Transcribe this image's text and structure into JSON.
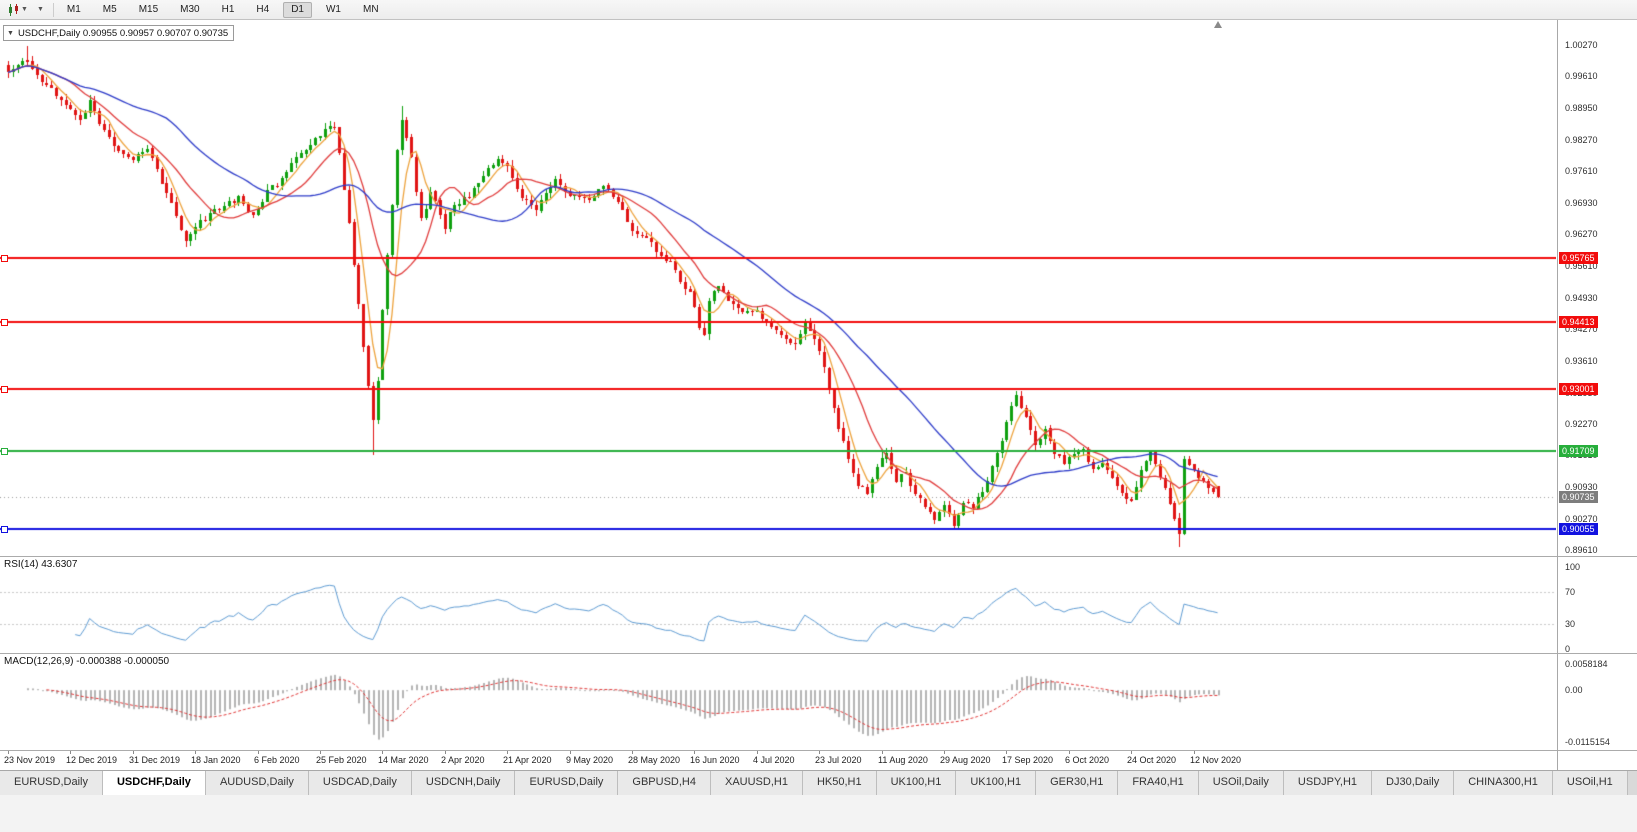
{
  "toolbar": {
    "timeframes": [
      "M1",
      "M5",
      "M15",
      "M30",
      "H1",
      "H4",
      "D1",
      "W1",
      "MN"
    ],
    "active": "D1",
    "chart_type_icon": "candlestick-chart",
    "dropdown_icon": "caret-down"
  },
  "chart": {
    "symbol_line": "USDCHF,Daily 0.90955 0.90957 0.90707 0.90735",
    "ohlc": {
      "open": "0.90955",
      "high": "0.90957",
      "low": "0.90707",
      "close": "0.90735"
    },
    "price_axis_labels": [
      "1.00270",
      "0.99610",
      "0.98950",
      "0.98270",
      "0.97610",
      "0.96930",
      "0.96270",
      "0.95610",
      "0.94930",
      "0.94270",
      "0.93610",
      "0.92930",
      "0.92270",
      "0.91610",
      "0.90930",
      "0.90270",
      "0.89610"
    ],
    "hlines": [
      {
        "value": 0.95765,
        "label": "0.95765",
        "color": "#f20c0c"
      },
      {
        "value": 0.94413,
        "label": "0.94413",
        "color": "#f20c0c"
      },
      {
        "value": 0.93001,
        "label": "0.93001",
        "color": "#f20c0c"
      },
      {
        "value": 0.91709,
        "label": "0.91709",
        "color": "#27ae3b"
      },
      {
        "value": 0.90055,
        "label": "0.90055",
        "color": "#1212e0"
      }
    ],
    "current_price": {
      "label": "0.90735",
      "value": 0.90735,
      "color": "#7d7d7d"
    }
  },
  "rsi": {
    "title": "RSI(14) 43.6307",
    "period": 14,
    "value": 43.6307,
    "levels": [
      100,
      70,
      30,
      0
    ],
    "color": "#5e9bd2"
  },
  "macd": {
    "title": "MACD(12,26,9) -0.000388 -0.000050",
    "fast": 12,
    "slow": 26,
    "signal": 9,
    "value": -0.000388,
    "signal_value": -5e-05,
    "axis_labels": [
      "0.0058184",
      "0.00",
      "-0.0115154"
    ],
    "histogram_color": "#b4b4b4",
    "signal_color": "#e03636"
  },
  "tabs": {
    "active_index": 1,
    "labels": [
      "EURUSD,Daily",
      "USDCHF,Daily",
      "AUDUSD,Daily",
      "USDCAD,Daily",
      "USDCNH,Daily",
      "EURUSD,Daily",
      "GBPUSD,H4",
      "XAUUSD,H1",
      "HK50,H1",
      "UK100,H1",
      "UK100,H1",
      "GER30,H1",
      "FRA40,H1",
      "USOil,Daily",
      "USDJPY,H1",
      "DJ30,Daily",
      "CHINA300,H1",
      "USOil,H1"
    ]
  },
  "chart_data": {
    "type": "candlestick",
    "symbol": "USDCHF",
    "timeframe": "Daily",
    "candle_count": 253,
    "seed": 20201119,
    "noise": 0.0012,
    "wick_noise": 0.0013,
    "up_color": "#0fa00f",
    "down_color": "#e01414",
    "label_step": 13,
    "x_labels": [
      "23 Nov 2019",
      "12 Dec 2019",
      "31 Dec 2019",
      "18 Jan 2020",
      "6 Feb 2020",
      "25 Feb 2020",
      "14 Mar 2020",
      "2 Apr 2020",
      "21 Apr 2020",
      "9 May 2020",
      "28 May 2020",
      "16 Jun 2020",
      "4 Jul 2020",
      "23 Jul 2020",
      "11 Aug 2020",
      "29 Aug 2020",
      "17 Sep 2020",
      "6 Oct 2020",
      "24 Oct 2020",
      "12 Nov 2020"
    ],
    "y_axis": {
      "top_price": 1.0027,
      "bottom_price": 0.8961
    },
    "last_candle": {
      "open": 0.90955,
      "high": 0.90957,
      "low": 0.90707,
      "close": 0.90735
    },
    "moving_averages": [
      {
        "period": 5,
        "color": "#eda33e"
      },
      {
        "period": 13,
        "color": "#e03c3c"
      },
      {
        "period": 34,
        "color": "#2e3cc9"
      }
    ],
    "price_anchors": [
      [
        0,
        0.9972
      ],
      [
        2,
        0.9988
      ],
      [
        4,
        0.9996
      ],
      [
        6,
        0.9966
      ],
      [
        8,
        0.9942
      ],
      [
        11,
        0.9912
      ],
      [
        13,
        0.9886
      ],
      [
        15,
        0.9872
      ],
      [
        17,
        0.9904
      ],
      [
        20,
        0.9844
      ],
      [
        23,
        0.9806
      ],
      [
        26,
        0.9788
      ],
      [
        29,
        0.9812
      ],
      [
        31,
        0.9762
      ],
      [
        33,
        0.9716
      ],
      [
        35,
        0.9662
      ],
      [
        37,
        0.9616
      ],
      [
        40,
        0.9652
      ],
      [
        44,
        0.9682
      ],
      [
        48,
        0.9704
      ],
      [
        51,
        0.9668
      ],
      [
        54,
        0.9718
      ],
      [
        57,
        0.9742
      ],
      [
        60,
        0.9786
      ],
      [
        63,
        0.9822
      ],
      [
        66,
        0.9846
      ],
      [
        68,
        0.9854
      ],
      [
        69,
        0.98
      ],
      [
        70,
        0.972
      ],
      [
        71,
        0.9656
      ],
      [
        72,
        0.9562
      ],
      [
        73,
        0.9476
      ],
      [
        74,
        0.9388
      ],
      [
        75,
        0.9306
      ],
      [
        76,
        0.924
      ],
      [
        77,
        0.932
      ],
      [
        78,
        0.9464
      ],
      [
        79,
        0.958
      ],
      [
        80,
        0.9694
      ],
      [
        81,
        0.98
      ],
      [
        82,
        0.9872
      ],
      [
        83,
        0.9828
      ],
      [
        84,
        0.9786
      ],
      [
        85,
        0.9718
      ],
      [
        86,
        0.9662
      ],
      [
        88,
        0.9712
      ],
      [
        90,
        0.9672
      ],
      [
        91,
        0.9644
      ],
      [
        93,
        0.9692
      ],
      [
        96,
        0.9706
      ],
      [
        99,
        0.9748
      ],
      [
        102,
        0.9786
      ],
      [
        104,
        0.9768
      ],
      [
        106,
        0.9722
      ],
      [
        108,
        0.9696
      ],
      [
        110,
        0.9684
      ],
      [
        112,
        0.9714
      ],
      [
        114,
        0.974
      ],
      [
        116,
        0.9722
      ],
      [
        118,
        0.9706
      ],
      [
        121,
        0.9696
      ],
      [
        124,
        0.9736
      ],
      [
        126,
        0.9712
      ],
      [
        128,
        0.9678
      ],
      [
        130,
        0.9636
      ],
      [
        132,
        0.9622
      ],
      [
        134,
        0.9608
      ],
      [
        136,
        0.9584
      ],
      [
        138,
        0.9566
      ],
      [
        140,
        0.9528
      ],
      [
        142,
        0.9506
      ],
      [
        144,
        0.9434
      ],
      [
        145,
        0.941
      ],
      [
        146,
        0.9486
      ],
      [
        148,
        0.9524
      ],
      [
        150,
        0.9492
      ],
      [
        153,
        0.9466
      ],
      [
        156,
        0.9462
      ],
      [
        158,
        0.9444
      ],
      [
        160,
        0.9424
      ],
      [
        162,
        0.9408
      ],
      [
        164,
        0.94
      ],
      [
        166,
        0.9436
      ],
      [
        168,
        0.9402
      ],
      [
        169,
        0.9382
      ],
      [
        170,
        0.9344
      ],
      [
        171,
        0.9304
      ],
      [
        172,
        0.9262
      ],
      [
        173,
        0.922
      ],
      [
        174,
        0.9186
      ],
      [
        175,
        0.9154
      ],
      [
        176,
        0.9124
      ],
      [
        177,
        0.91
      ],
      [
        179,
        0.908
      ],
      [
        181,
        0.9134
      ],
      [
        183,
        0.9164
      ],
      [
        185,
        0.911
      ],
      [
        187,
        0.913
      ],
      [
        188,
        0.9094
      ],
      [
        190,
        0.9064
      ],
      [
        192,
        0.904
      ],
      [
        193,
        0.9028
      ],
      [
        195,
        0.9054
      ],
      [
        197,
        0.901
      ],
      [
        199,
        0.9064
      ],
      [
        201,
        0.9052
      ],
      [
        202,
        0.9068
      ],
      [
        204,
        0.9108
      ],
      [
        205,
        0.9136
      ],
      [
        207,
        0.9196
      ],
      [
        208,
        0.9236
      ],
      [
        209,
        0.9268
      ],
      [
        210,
        0.9284
      ],
      [
        211,
        0.9262
      ],
      [
        212,
        0.924
      ],
      [
        213,
        0.9208
      ],
      [
        214,
        0.918
      ],
      [
        216,
        0.9214
      ],
      [
        218,
        0.9164
      ],
      [
        220,
        0.9146
      ],
      [
        221,
        0.9154
      ],
      [
        223,
        0.9168
      ],
      [
        224,
        0.9174
      ],
      [
        226,
        0.913
      ],
      [
        228,
        0.9148
      ],
      [
        230,
        0.9112
      ],
      [
        232,
        0.9078
      ],
      [
        234,
        0.906
      ],
      [
        235,
        0.9092
      ],
      [
        236,
        0.913
      ],
      [
        237,
        0.915
      ],
      [
        238,
        0.9164
      ],
      [
        239,
        0.9146
      ],
      [
        240,
        0.912
      ],
      [
        241,
        0.909
      ],
      [
        242,
        0.9054
      ],
      [
        243,
        0.9024
      ],
      [
        244,
        0.8994
      ],
      [
        245,
        0.915
      ],
      [
        246,
        0.914
      ],
      [
        247,
        0.913
      ],
      [
        248,
        0.9118
      ],
      [
        249,
        0.9108
      ],
      [
        250,
        0.9096
      ],
      [
        251,
        0.9088
      ],
      [
        252,
        0.90735
      ]
    ],
    "wick_extremes": [
      {
        "i": 4,
        "high": 1.0025
      },
      {
        "i": 37,
        "low": 0.96
      },
      {
        "i": 76,
        "low": 0.9162
      },
      {
        "i": 82,
        "high": 0.9898
      },
      {
        "i": 210,
        "high": 0.9296
      },
      {
        "i": 244,
        "low": 0.8968
      }
    ]
  }
}
